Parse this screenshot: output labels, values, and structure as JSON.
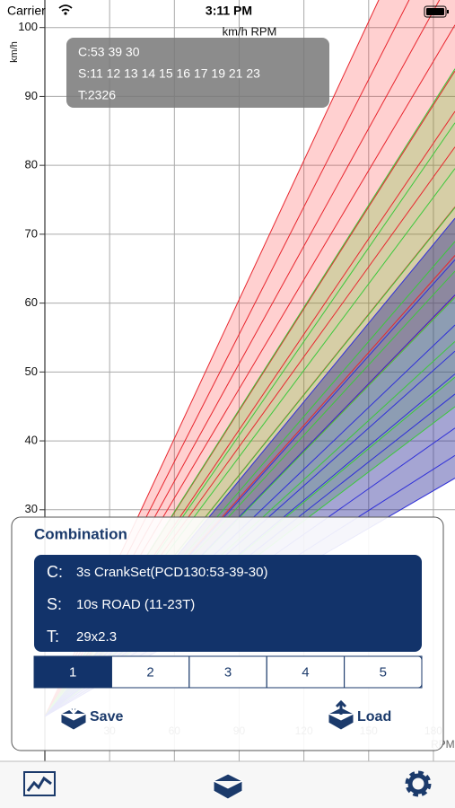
{
  "status_bar": {
    "carrier": "Carrier",
    "time": "3:11 PM"
  },
  "chart_data": {
    "type": "line",
    "y_label": "km/h",
    "top_label": "km/h RPM",
    "x_label": "RPM",
    "xlim": [
      0,
      190
    ],
    "ylim": [
      0,
      104
    ],
    "xticks": [
      30,
      60,
      90,
      120,
      150,
      180
    ],
    "yticks": [
      30,
      40,
      50,
      60,
      70,
      80,
      90,
      100
    ],
    "grid": true,
    "info": [
      "C:53 39 30",
      "S:11 12 13 14 15 16 17 19 21 23",
      "T:2326"
    ],
    "chainrings": [
      {
        "teeth": 53,
        "color": "#e8262e",
        "fill": "rgba(255,40,40,0.22)"
      },
      {
        "teeth": 39,
        "color": "#3cc83c",
        "fill": "rgba(90,200,40,0.25)"
      },
      {
        "teeth": 30,
        "color": "#3030d8",
        "fill": "rgba(40,40,150,0.42)"
      }
    ],
    "cogs": [
      11,
      12,
      13,
      14,
      15,
      16,
      17,
      19,
      21,
      23
    ],
    "tire_circumference": 2326
  },
  "combination": {
    "title": "Combination",
    "rows": [
      {
        "key": "C:",
        "value": "3s CrankSet(PCD130:53-39-30)"
      },
      {
        "key": "S:",
        "value": "10s ROAD (11-23T)"
      },
      {
        "key": "T:",
        "value": "29x2.3"
      }
    ],
    "segments": [
      "1",
      "2",
      "3",
      "4",
      "5"
    ],
    "selected": 0,
    "save": "Save",
    "load": "Load"
  }
}
